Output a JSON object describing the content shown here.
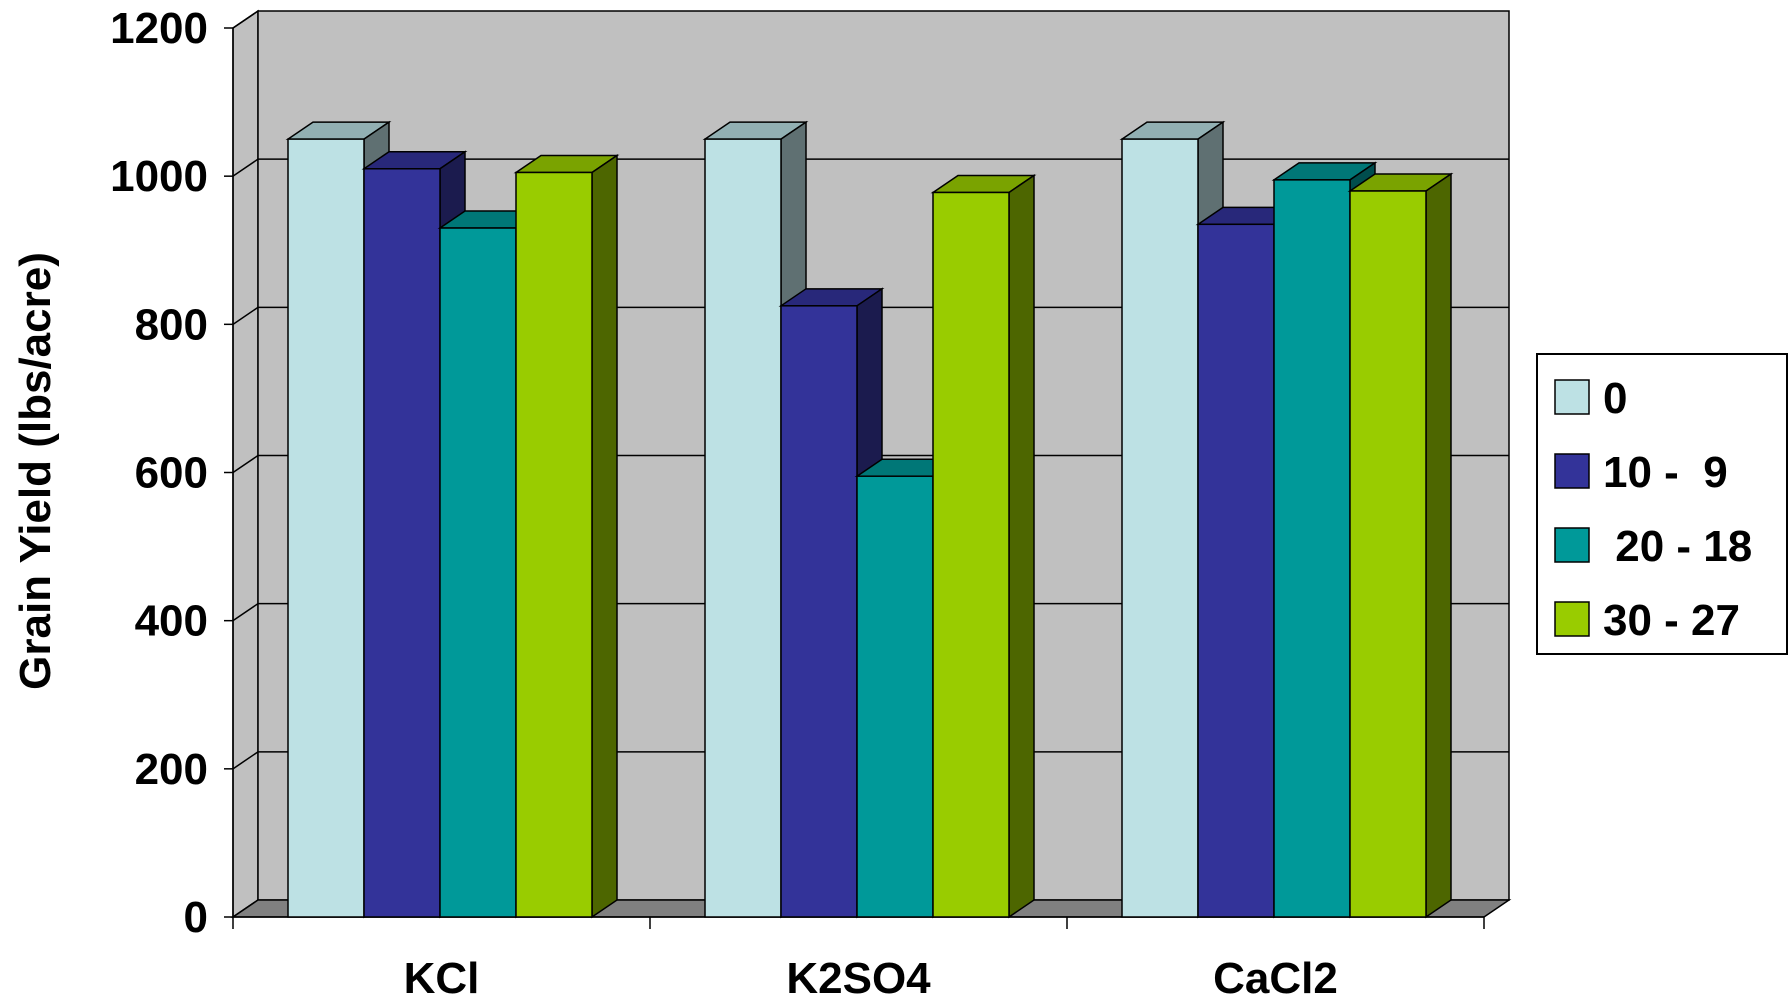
{
  "chart_data": {
    "type": "bar",
    "style": "3d-clustered-column",
    "categories": [
      "KCl",
      "K2SO4",
      "CaCl2"
    ],
    "series": [
      {
        "name": "0",
        "values": [
          1050,
          1050,
          1050
        ],
        "color": "#bde1e4",
        "side": "#5f7072",
        "top": "#92b0b3"
      },
      {
        "name": "10 -  9",
        "values": [
          1010,
          825,
          935
        ],
        "color": "#333399",
        "side": "#1b1b4e",
        "top": "#28287a"
      },
      {
        "name": " 20 - 18",
        "values": [
          930,
          595,
          995
        ],
        "color": "#009999",
        "side": "#004d4d",
        "top": "#007777"
      },
      {
        "name": "30 - 27",
        "values": [
          1005,
          978,
          980
        ],
        "color": "#99cc00",
        "side": "#4d6600",
        "top": "#7aa300"
      }
    ],
    "yticks": [
      "0",
      "200",
      "400",
      "600",
      "800",
      "1000",
      "1200"
    ],
    "ylim": [
      0,
      1200
    ],
    "ylabel": "Grain Yield (lbs/acre)",
    "xlabel": "",
    "grid": true,
    "legend_position": "right",
    "wall_color": "#c0c0c0",
    "floor_color": "#808080"
  }
}
